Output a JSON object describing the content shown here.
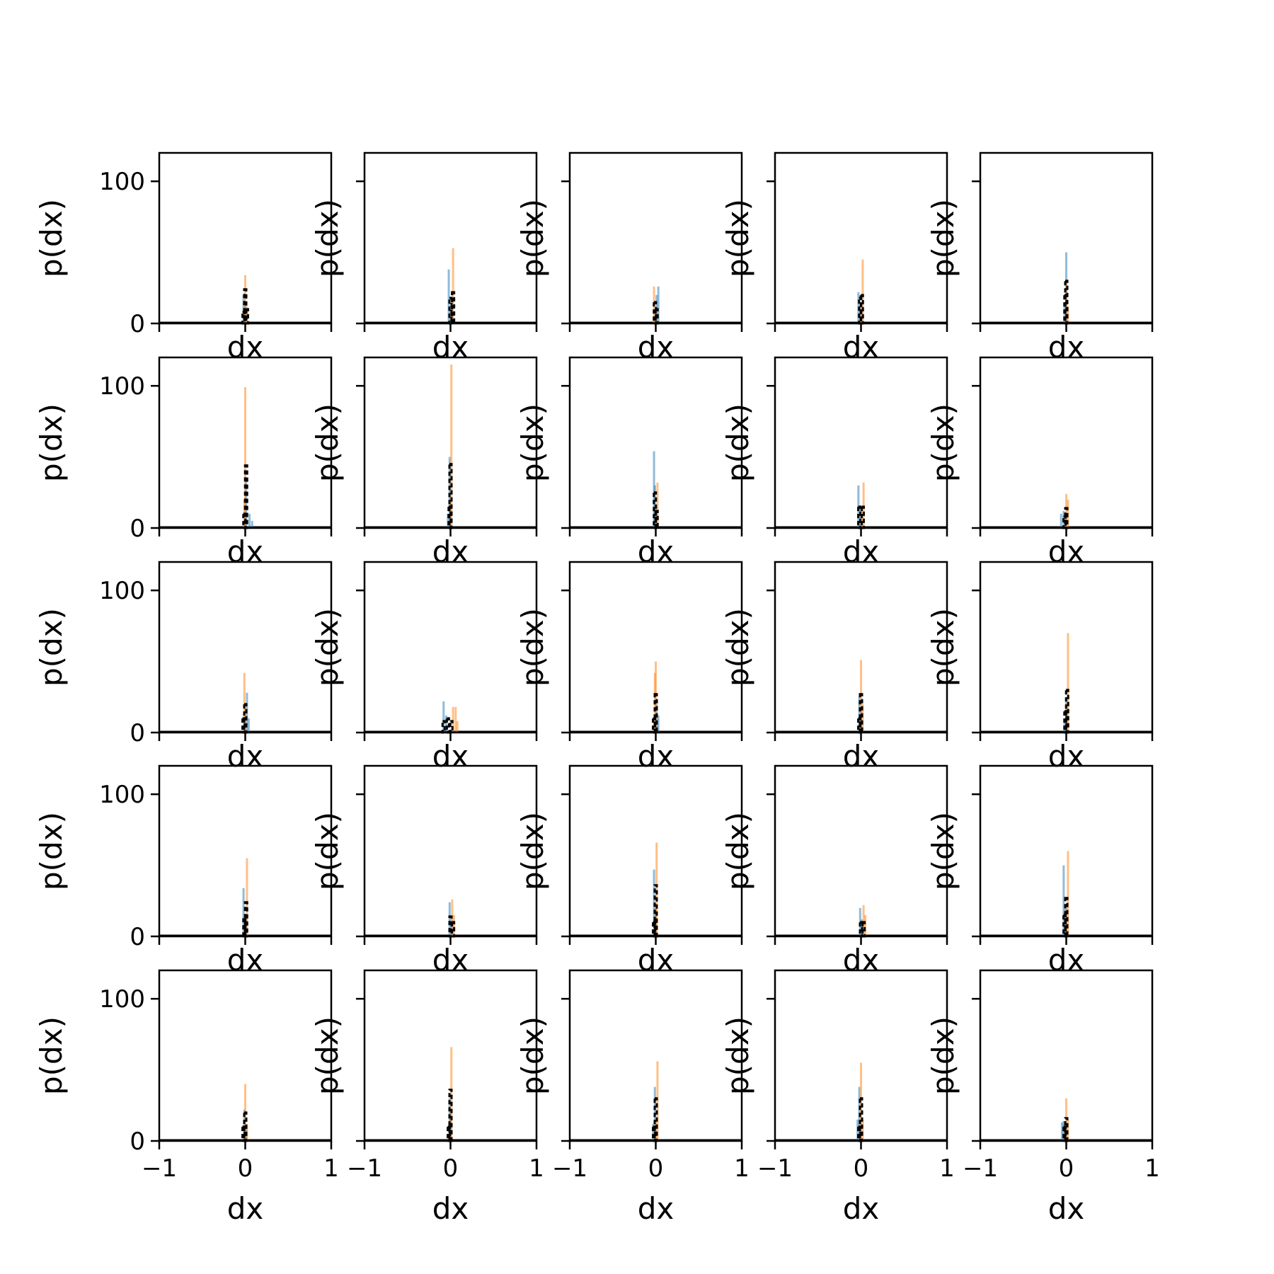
{
  "chart_data": {
    "type": "bar",
    "layout": {
      "rows": 5,
      "cols": 5
    },
    "xlabel": "dx",
    "ylabel": "p(dx)",
    "xlim": [
      -1,
      1
    ],
    "ylim": [
      0,
      120
    ],
    "xticks": [
      -1,
      0,
      1
    ],
    "xtick_labels": [
      "−1",
      "0",
      "1"
    ],
    "yticks": [
      0,
      100
    ],
    "ytick_labels": [
      "0",
      "100"
    ],
    "colors": {
      "blue": "#1f77b4",
      "orange": "#ff7f0e",
      "black": "#000000"
    },
    "panels": [
      {
        "blue": [
          [
            -0.02,
            20
          ],
          [
            0.0,
            15
          ],
          [
            0.02,
            8
          ]
        ],
        "orange": [
          [
            -0.01,
            10
          ],
          [
            0.0,
            34
          ],
          [
            0.02,
            12
          ]
        ],
        "black": [
          [
            -0.02,
            8
          ],
          [
            0.0,
            24
          ],
          [
            0.02,
            10
          ]
        ]
      },
      {
        "blue": [
          [
            -0.02,
            38
          ],
          [
            0.0,
            12
          ]
        ],
        "orange": [
          [
            0.03,
            53
          ],
          [
            0.01,
            10
          ]
        ],
        "black": [
          [
            0.0,
            18
          ],
          [
            0.03,
            22
          ]
        ]
      },
      {
        "blue": [
          [
            0.01,
            20
          ],
          [
            0.03,
            26
          ]
        ],
        "orange": [
          [
            -0.02,
            26
          ],
          [
            0.0,
            12
          ]
        ],
        "black": [
          [
            -0.01,
            15
          ],
          [
            0.01,
            10
          ]
        ]
      },
      {
        "blue": [
          [
            -0.03,
            22
          ],
          [
            -0.01,
            12
          ]
        ],
        "orange": [
          [
            0.02,
            45
          ],
          [
            0.0,
            12
          ]
        ],
        "black": [
          [
            -0.01,
            18
          ],
          [
            0.01,
            20
          ]
        ]
      },
      {
        "blue": [
          [
            0.0,
            50
          ],
          [
            -0.02,
            15
          ]
        ],
        "orange": [
          [
            0.0,
            30
          ],
          [
            0.02,
            12
          ]
        ],
        "black": [
          [
            0.0,
            30
          ],
          [
            -0.01,
            20
          ]
        ]
      },
      {
        "blue": [
          [
            0.01,
            35
          ],
          [
            0.05,
            10
          ],
          [
            0.08,
            5
          ]
        ],
        "orange": [
          [
            0.0,
            99
          ],
          [
            -0.01,
            20
          ]
        ],
        "black": [
          [
            0.01,
            44
          ],
          [
            -0.01,
            10
          ]
        ]
      },
      {
        "blue": [
          [
            -0.01,
            50
          ],
          [
            -0.03,
            10
          ]
        ],
        "orange": [
          [
            0.01,
            115
          ],
          [
            0.0,
            20
          ]
        ],
        "black": [
          [
            0.0,
            45
          ],
          [
            -0.01,
            15
          ]
        ]
      },
      {
        "blue": [
          [
            -0.02,
            54
          ],
          [
            -0.01,
            30
          ]
        ],
        "orange": [
          [
            0.02,
            32
          ],
          [
            0.0,
            15
          ]
        ],
        "black": [
          [
            -0.01,
            25
          ],
          [
            0.01,
            12
          ]
        ]
      },
      {
        "blue": [
          [
            -0.03,
            30
          ],
          [
            -0.01,
            15
          ]
        ],
        "orange": [
          [
            0.03,
            32
          ],
          [
            0.01,
            15
          ]
        ],
        "black": [
          [
            -0.02,
            15
          ],
          [
            0.02,
            15
          ]
        ]
      },
      {
        "blue": [
          [
            -0.06,
            10
          ],
          [
            -0.03,
            12
          ]
        ],
        "orange": [
          [
            0.0,
            24
          ],
          [
            0.02,
            20
          ]
        ],
        "black": [
          [
            0.0,
            14
          ],
          [
            -0.02,
            8
          ]
        ]
      },
      {
        "blue": [
          [
            0.02,
            28
          ],
          [
            0.04,
            10
          ]
        ],
        "orange": [
          [
            -0.01,
            42
          ],
          [
            0.0,
            20
          ]
        ],
        "black": [
          [
            0.0,
            20
          ],
          [
            -0.02,
            10
          ]
        ]
      },
      {
        "blue": [
          [
            -0.08,
            22
          ],
          [
            -0.05,
            12
          ]
        ],
        "orange": [
          [
            0.03,
            18
          ],
          [
            0.06,
            18
          ],
          [
            0.08,
            8
          ]
        ],
        "black": [
          [
            -0.08,
            8
          ],
          [
            -0.03,
            10
          ],
          [
            0.01,
            8
          ]
        ]
      },
      {
        "blue": [
          [
            0.01,
            20
          ],
          [
            0.03,
            12
          ]
        ],
        "orange": [
          [
            -0.01,
            42
          ],
          [
            0.0,
            50
          ]
        ],
        "black": [
          [
            0.0,
            27
          ],
          [
            -0.02,
            10
          ]
        ]
      },
      {
        "blue": [
          [
            -0.02,
            25
          ],
          [
            0.0,
            15
          ]
        ],
        "orange": [
          [
            0.0,
            51
          ],
          [
            0.02,
            20
          ]
        ],
        "black": [
          [
            0.0,
            27
          ],
          [
            -0.02,
            10
          ]
        ]
      },
      {
        "blue": [
          [
            0.0,
            25
          ],
          [
            -0.02,
            10
          ]
        ],
        "orange": [
          [
            0.02,
            70
          ],
          [
            0.0,
            20
          ]
        ],
        "black": [
          [
            0.01,
            30
          ],
          [
            -0.01,
            15
          ]
        ]
      },
      {
        "blue": [
          [
            -0.02,
            34
          ],
          [
            0.0,
            15
          ]
        ],
        "orange": [
          [
            0.02,
            55
          ],
          [
            0.0,
            15
          ]
        ],
        "black": [
          [
            0.01,
            24
          ],
          [
            -0.01,
            12
          ]
        ]
      },
      {
        "blue": [
          [
            -0.01,
            24
          ],
          [
            0.01,
            12
          ]
        ],
        "orange": [
          [
            0.02,
            26
          ],
          [
            0.04,
            15
          ]
        ],
        "black": [
          [
            0.0,
            14
          ],
          [
            0.03,
            10
          ]
        ]
      },
      {
        "blue": [
          [
            -0.02,
            47
          ],
          [
            0.0,
            20
          ]
        ],
        "orange": [
          [
            0.01,
            66
          ],
          [
            0.0,
            20
          ]
        ],
        "black": [
          [
            0.0,
            36
          ],
          [
            -0.02,
            10
          ]
        ]
      },
      {
        "blue": [
          [
            -0.01,
            20
          ],
          [
            0.01,
            12
          ]
        ],
        "orange": [
          [
            0.03,
            22
          ],
          [
            0.05,
            15
          ]
        ],
        "black": [
          [
            0.0,
            10
          ],
          [
            0.03,
            10
          ]
        ]
      },
      {
        "blue": [
          [
            -0.03,
            50
          ],
          [
            -0.01,
            20
          ]
        ],
        "orange": [
          [
            0.02,
            60
          ],
          [
            0.0,
            20
          ]
        ],
        "black": [
          [
            0.0,
            27
          ],
          [
            -0.02,
            15
          ]
        ]
      },
      {
        "blue": [
          [
            -0.01,
            22
          ],
          [
            0.01,
            10
          ]
        ],
        "orange": [
          [
            0.0,
            40
          ],
          [
            0.02,
            12
          ]
        ],
        "black": [
          [
            0.0,
            20
          ],
          [
            -0.02,
            10
          ]
        ]
      },
      {
        "blue": [
          [
            -0.01,
            30
          ],
          [
            0.0,
            15
          ]
        ],
        "orange": [
          [
            0.01,
            66
          ],
          [
            0.0,
            20
          ]
        ],
        "black": [
          [
            0.0,
            36
          ],
          [
            -0.02,
            10
          ]
        ]
      },
      {
        "blue": [
          [
            -0.01,
            38
          ],
          [
            -0.03,
            12
          ]
        ],
        "orange": [
          [
            0.02,
            56
          ],
          [
            0.0,
            15
          ]
        ],
        "black": [
          [
            0.0,
            30
          ],
          [
            -0.02,
            10
          ]
        ]
      },
      {
        "blue": [
          [
            -0.02,
            38
          ],
          [
            -0.04,
            15
          ]
        ],
        "orange": [
          [
            0.0,
            55
          ],
          [
            0.02,
            15
          ]
        ],
        "black": [
          [
            0.0,
            30
          ],
          [
            -0.02,
            10
          ]
        ]
      },
      {
        "blue": [
          [
            -0.05,
            13
          ],
          [
            -0.03,
            14
          ]
        ],
        "orange": [
          [
            0.0,
            30
          ],
          [
            0.02,
            15
          ]
        ],
        "black": [
          [
            0.0,
            16
          ],
          [
            -0.02,
            10
          ]
        ]
      }
    ]
  }
}
